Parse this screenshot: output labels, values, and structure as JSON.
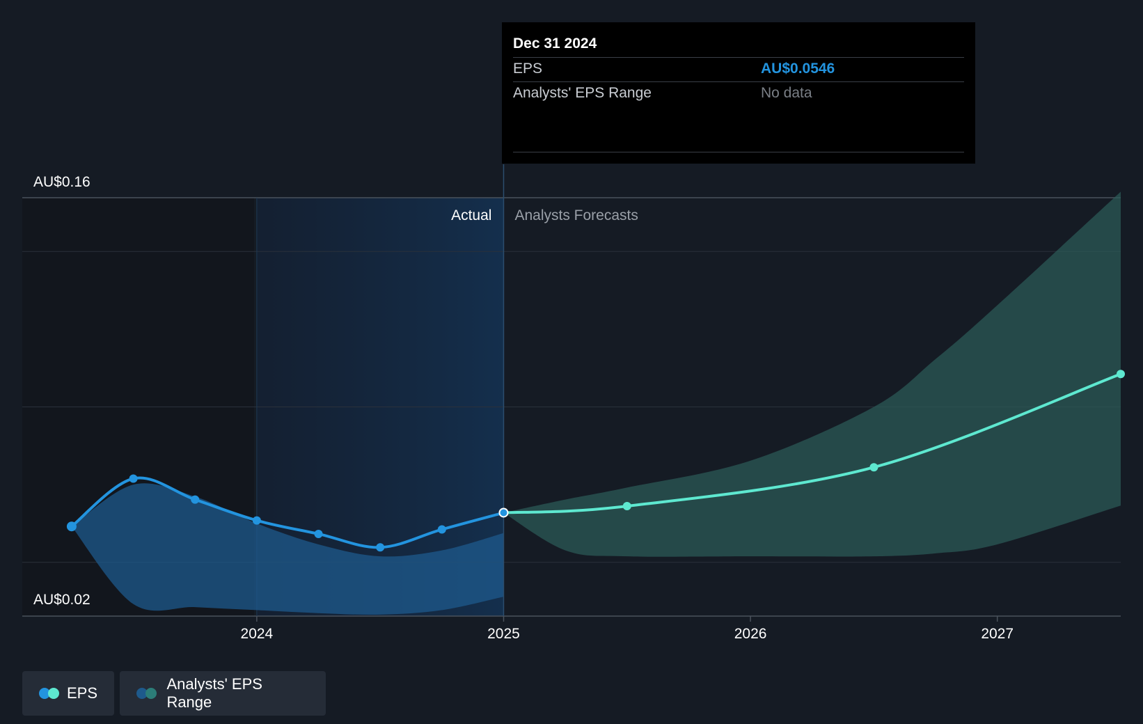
{
  "chart_data": {
    "type": "line",
    "y_axis": {
      "labels": [
        "AU$0.16",
        "AU$0.02"
      ],
      "ylim": [
        0.02,
        0.16
      ]
    },
    "x_axis": {
      "ticks": [
        "2024",
        "2025",
        "2026",
        "2027"
      ],
      "tick_values": [
        2024.0,
        2025.0,
        2026.0,
        2027.0
      ],
      "xlim": [
        2023.05,
        2027.5
      ]
    },
    "divider_x": 2025.0,
    "highlight_start_x": 2024.0,
    "section_labels": {
      "actual": "Actual",
      "forecast": "Analysts Forecasts"
    },
    "series": [
      {
        "name": "EPS",
        "segment": "actual",
        "color": "#2394df",
        "x": [
          2023.25,
          2023.5,
          2023.75,
          2024.0,
          2024.25,
          2024.5,
          2024.75,
          2025.0
        ],
        "y": [
          0.05,
          0.066,
          0.059,
          0.052,
          0.0475,
          0.043,
          0.049,
          0.0546
        ]
      },
      {
        "name": "EPS",
        "segment": "forecast",
        "color": "#5ee8d0",
        "x": [
          2025.0,
          2025.5,
          2026.5,
          2027.5
        ],
        "y": [
          0.0546,
          0.0568,
          0.0698,
          0.101
        ]
      }
    ],
    "ranges": [
      {
        "name": "Analysts' EPS Range",
        "segment": "actual",
        "color": "#1e5a8c",
        "x": [
          2023.25,
          2023.5,
          2023.75,
          2024.0,
          2024.25,
          2024.5,
          2024.75,
          2025.0
        ],
        "high": [
          0.05,
          0.064,
          0.06,
          0.051,
          0.044,
          0.04,
          0.042,
          0.0478
        ],
        "low": [
          0.05,
          0.024,
          0.023,
          0.022,
          0.021,
          0.0205,
          0.022,
          0.0265
        ]
      },
      {
        "name": "Analysts' EPS Range",
        "segment": "forecast",
        "color": "#2c5d5a",
        "x": [
          2025.0,
          2025.25,
          2025.5,
          2026.0,
          2026.5,
          2026.75,
          2027.0,
          2027.5
        ],
        "high": [
          0.0546,
          0.059,
          0.063,
          0.072,
          0.09,
          0.106,
          0.124,
          0.162
        ],
        "low": [
          0.0546,
          0.042,
          0.04,
          0.04,
          0.04,
          0.041,
          0.044,
          0.057
        ]
      }
    ],
    "tooltip_x": 2025.0,
    "grid": true
  },
  "tooltip": {
    "date": "Dec 31 2024",
    "eps_label": "EPS",
    "eps_value": "AU$0.0546",
    "range_label": "Analysts' EPS Range",
    "range_value": "No data"
  },
  "legend": {
    "eps_label": "EPS",
    "range_label": "Analysts' EPS Range"
  },
  "colors": {
    "background": "#151b24",
    "actual_shade": "#152a40",
    "eps_actual": "#2394df",
    "eps_forecast": "#5ee8d0",
    "range_actual": "#1e5a8c",
    "range_forecast": "#2c5d5a"
  }
}
